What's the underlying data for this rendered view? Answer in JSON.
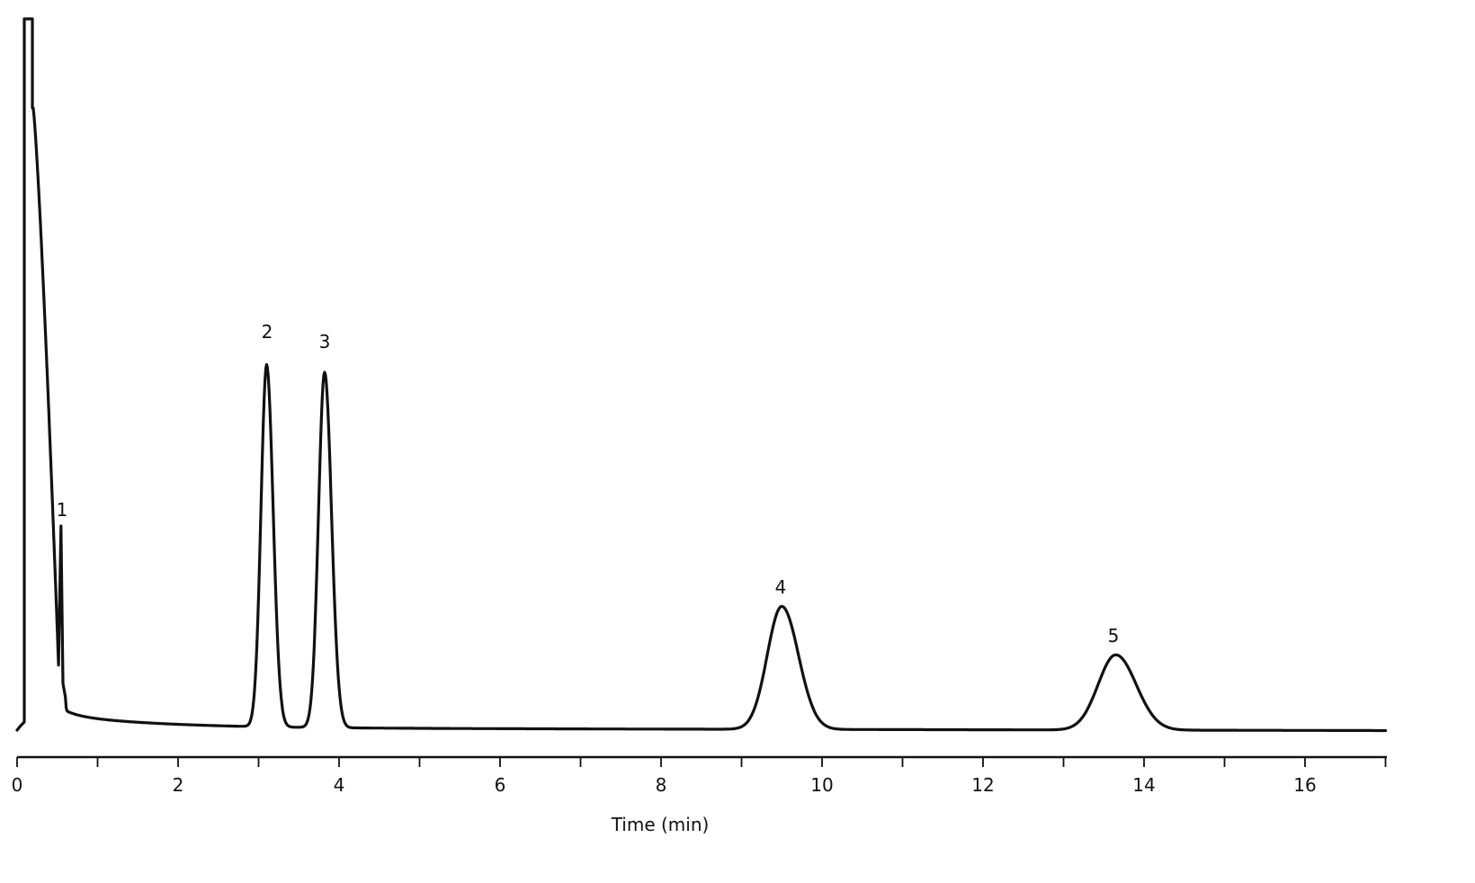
{
  "chart_data": {
    "type": "line",
    "title": "",
    "xlabel": "Time (min)",
    "ylabel": "",
    "xlim": [
      0,
      17
    ],
    "ylim": [
      0,
      1
    ],
    "grid": false,
    "legend": null,
    "x_ticks": {
      "major": [
        0,
        2,
        4,
        6,
        8,
        10,
        12,
        14,
        16
      ],
      "minor": [
        1,
        3,
        5,
        7,
        9,
        11,
        13,
        15,
        17
      ],
      "labels": [
        "0",
        "2",
        "4",
        "6",
        "8",
        "10",
        "12",
        "14",
        "16"
      ]
    },
    "solvent_front": {
      "start_min": 0.08,
      "end_min": 0.2,
      "height": 1.0,
      "note": "off-scale (clipped)"
    },
    "peaks": [
      {
        "label": "1",
        "retention_time_min": 0.56,
        "relative_height": 0.29,
        "width_sigma_min": 0.015
      },
      {
        "label": "2",
        "retention_time_min": 3.1,
        "relative_height": 0.53,
        "width_sigma_min": 0.07
      },
      {
        "label": "3",
        "retention_time_min": 3.82,
        "relative_height": 0.52,
        "width_sigma_min": 0.075
      },
      {
        "label": "4",
        "retention_time_min": 9.5,
        "relative_height": 0.18,
        "width_sigma_min": 0.18
      },
      {
        "label": "5",
        "retention_time_min": 13.65,
        "relative_height": 0.11,
        "width_sigma_min": 0.22
      }
    ],
    "baseline": {
      "start": 0.0,
      "drift_end": -0.009
    }
  },
  "axis": {
    "title": "Time (min)",
    "tick_labels": [
      "0",
      "2",
      "4",
      "6",
      "8",
      "10",
      "12",
      "14",
      "16"
    ]
  },
  "peak_labels": [
    "1",
    "2",
    "3",
    "4",
    "5"
  ]
}
